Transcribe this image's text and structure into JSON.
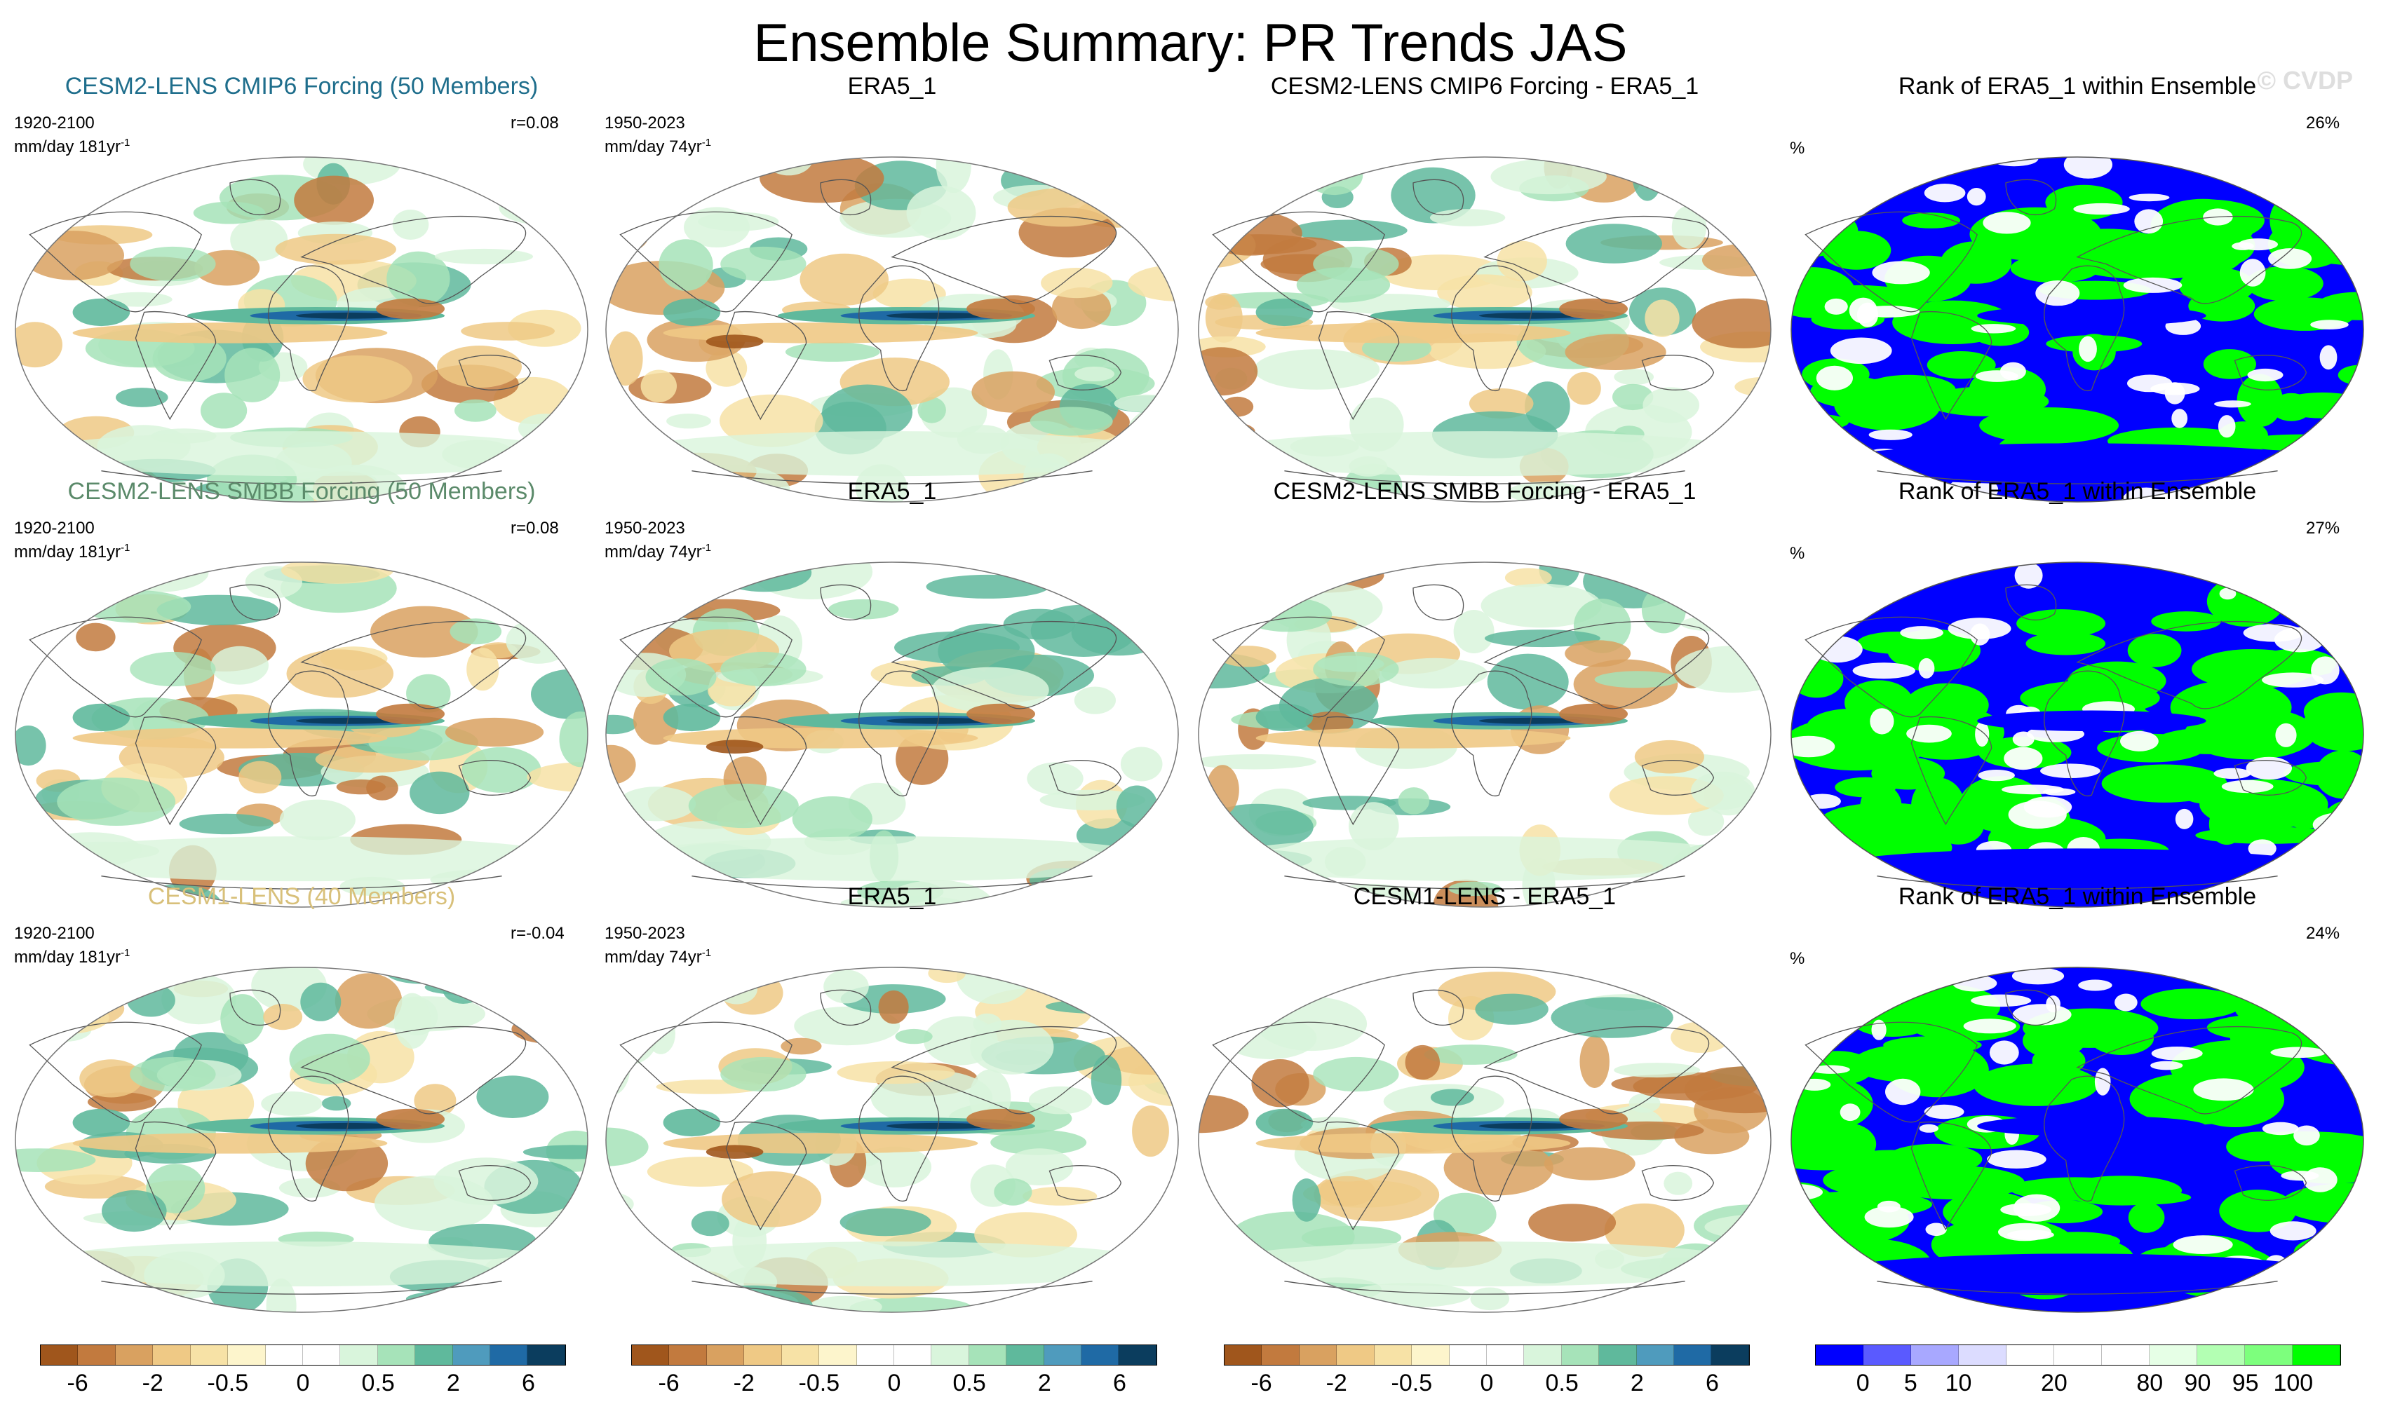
{
  "title": "Ensemble Summary: PR Trends JAS",
  "watermark": "© CVDP",
  "rows": [
    {
      "model_title": "CESM2-LENS CMIP6 Forcing (50 Members)",
      "model_title_color": "#1f6e8c",
      "model_period": "1920-2100",
      "model_units": "mm/day 181yr",
      "model_r": "r=0.08",
      "obs_title": "ERA5_1",
      "obs_period": "1950-2023",
      "obs_units": "mm/day 74yr",
      "diff_title": "CESM2-LENS CMIP6 Forcing - ERA5_1",
      "rank_title": "Rank of ERA5_1 within Ensemble",
      "rank_unit": "%",
      "rank_pct": "26%"
    },
    {
      "model_title": "CESM2-LENS SMBB Forcing (50 Members)",
      "model_title_color": "#5b8a6a",
      "model_period": "1920-2100",
      "model_units": "mm/day 181yr",
      "model_r": "r=0.08",
      "obs_title": "ERA5_1",
      "obs_period": "1950-2023",
      "obs_units": "mm/day 74yr",
      "diff_title": "CESM2-LENS SMBB Forcing - ERA5_1",
      "rank_title": "Rank of ERA5_1 within Ensemble",
      "rank_unit": "%",
      "rank_pct": "27%"
    },
    {
      "model_title": "CESM1-LENS (40 Members)",
      "model_title_color": "#d8c07a",
      "model_period": "1920-2100",
      "model_units": "mm/day 181yr",
      "model_r": "r=-0.04",
      "obs_title": "ERA5_1",
      "obs_period": "1950-2023",
      "obs_units": "mm/day 74yr",
      "diff_title": "CESM1-LENS - ERA5_1",
      "rank_title": "Rank of ERA5_1 within Ensemble",
      "rank_unit": "%",
      "rank_pct": "24%"
    }
  ],
  "trend_colorbar": {
    "colors": [
      "#a0561c",
      "#c27a3e",
      "#d9a160",
      "#efc985",
      "#f7e2a6",
      "#fdf5cc",
      "#ffffff",
      "#ffffff",
      "#d9f5dc",
      "#a6e3b9",
      "#5fb99c",
      "#4f9bbd",
      "#1f6aa5",
      "#0b3d5e"
    ],
    "labels": [
      "-6",
      "-2",
      "-0.5",
      "0",
      "0.5",
      "2",
      "6"
    ]
  },
  "rank_colorbar": {
    "colors": [
      "#0000ff",
      "#5a5aff",
      "#a8a8ff",
      "#dcdcff",
      "#ffffff",
      "#ffffff",
      "#ffffff",
      "#e6ffe6",
      "#b3ffb3",
      "#7dff7d",
      "#00ff00"
    ],
    "labels": [
      "0",
      "5",
      "10",
      "20",
      "80",
      "90",
      "95",
      "100"
    ]
  }
}
